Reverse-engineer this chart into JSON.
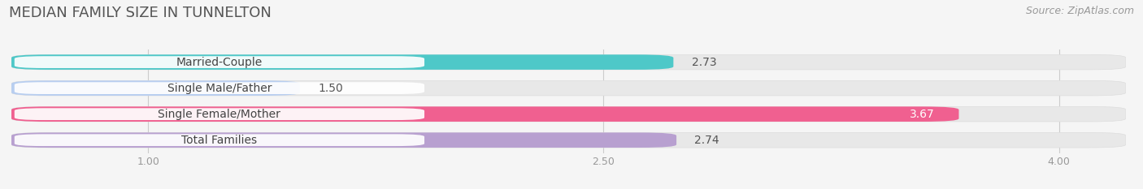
{
  "title": "MEDIAN FAMILY SIZE IN TUNNELTON",
  "source": "Source: ZipAtlas.com",
  "categories": [
    "Married-Couple",
    "Single Male/Father",
    "Single Female/Mother",
    "Total Families"
  ],
  "values": [
    2.73,
    1.5,
    3.67,
    2.74
  ],
  "bar_colors": [
    "#4ec8c8",
    "#b8cef0",
    "#f06090",
    "#b8a0d0"
  ],
  "value_inside": [
    false,
    false,
    true,
    false
  ],
  "value_colors_outside": [
    "#666666",
    "#666666",
    "#ffffff",
    "#666666"
  ],
  "xlim_start": 0.55,
  "xlim_end": 4.22,
  "data_min": 1.0,
  "data_max": 4.0,
  "xticks": [
    1.0,
    2.5,
    4.0
  ],
  "background_color": "#f5f5f5",
  "bar_bg_color": "#e8e8e8",
  "bar_bg_outline": "#dddddd",
  "label_bg_color": "#ffffff",
  "label_fontsize": 10,
  "value_fontsize": 10,
  "title_fontsize": 13,
  "source_fontsize": 9
}
